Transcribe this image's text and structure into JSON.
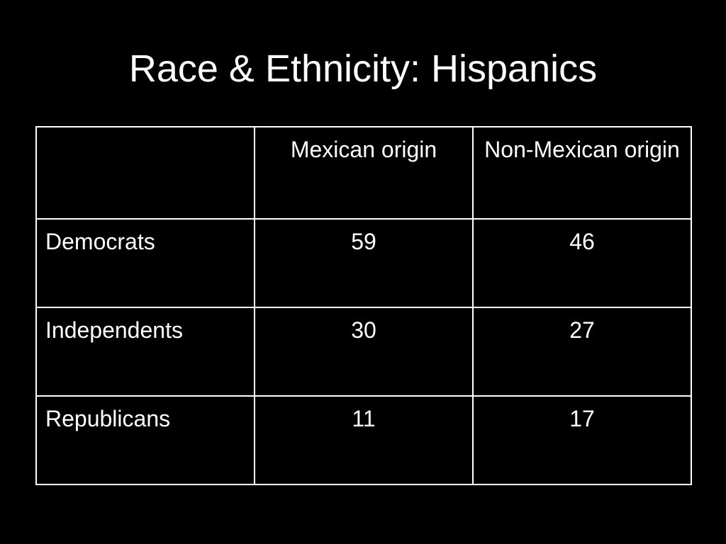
{
  "slide": {
    "title": "Race & Ethnicity: Hispanics"
  },
  "table": {
    "columns": [
      "",
      "Mexican origin",
      "Non-Mexican origin"
    ],
    "rows": [
      {
        "label": "Democrats",
        "values": [
          "59",
          "46"
        ]
      },
      {
        "label": "Independents",
        "values": [
          "30",
          "27"
        ]
      },
      {
        "label": "Republicans",
        "values": [
          "11",
          "17"
        ]
      }
    ]
  },
  "colors": {
    "background": "#000000",
    "text": "#ffffff",
    "border": "#ffffff"
  }
}
